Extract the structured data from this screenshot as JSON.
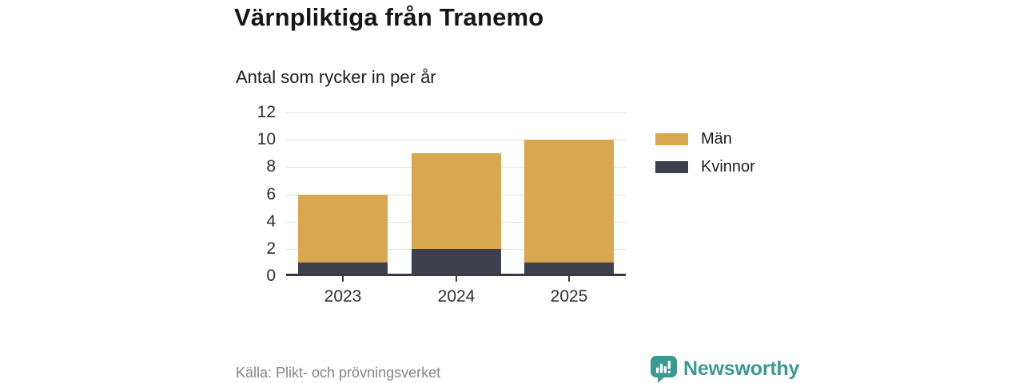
{
  "header": {
    "title": "Värnpliktiga från Tranemo",
    "subtitle": "Antal som rycker in per år"
  },
  "chart_data": {
    "type": "bar",
    "stacked": true,
    "title": "Värnpliktiga från Tranemo",
    "subtitle": "Antal som rycker in per år",
    "categories": [
      "2023",
      "2024",
      "2025"
    ],
    "series": [
      {
        "name": "Män",
        "color": "#d8a850",
        "values": [
          5,
          7,
          9
        ]
      },
      {
        "name": "Kvinnor",
        "color": "#3f404e",
        "values": [
          1,
          2,
          1
        ]
      }
    ],
    "stack_order_bottom_to_top": [
      "Kvinnor",
      "Män"
    ],
    "totals": [
      6,
      9,
      10
    ],
    "yticks": [
      0,
      2,
      4,
      6,
      8,
      10,
      12
    ],
    "ylim": [
      0,
      12
    ],
    "xlabel": "",
    "ylabel": "",
    "grid": true,
    "legend_position": "right"
  },
  "footer": {
    "source": "Källa: Plikt- och prövningsverket",
    "brand": "Newsworthy"
  },
  "icons": {
    "brand_logo": "newsworthy-speech-bubble-bar-chart-icon"
  },
  "colors": {
    "men": "#d8a850",
    "women": "#3f404e",
    "axis": "#3a3a46",
    "gridline": "#dedede",
    "text": "#1d1d22",
    "muted_text": "#83838b",
    "brand_teal": "#3a9a92",
    "background": "#ffffff"
  }
}
